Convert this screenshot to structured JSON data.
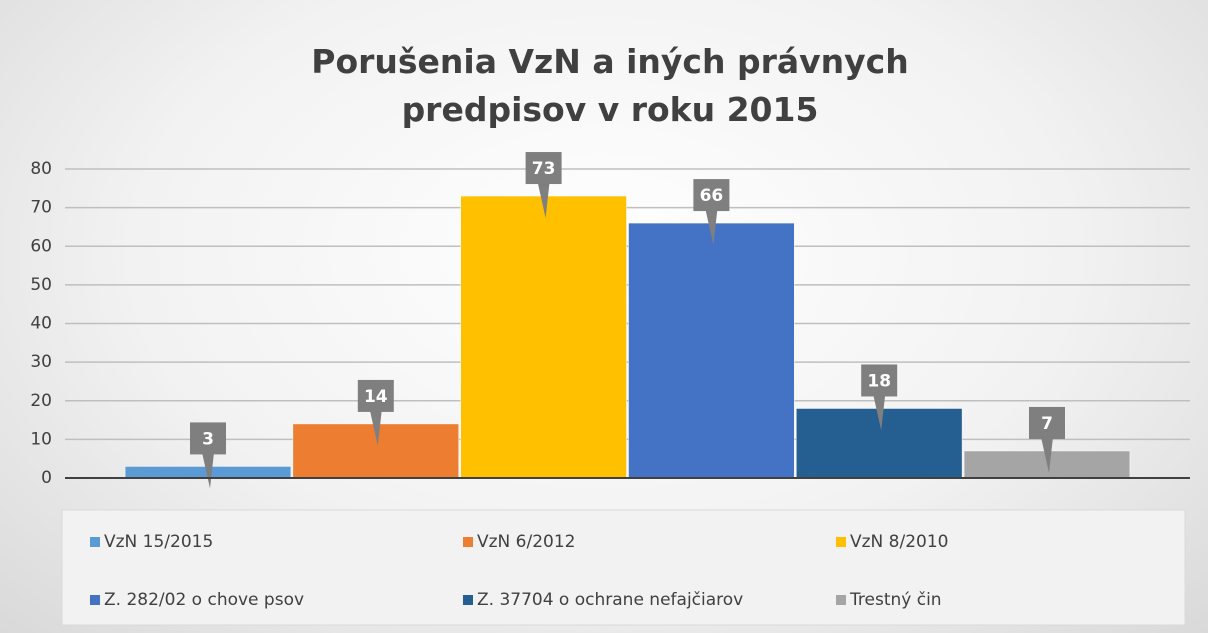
{
  "chart_data": {
    "type": "bar",
    "title": "Porušenia VzN  a iných právnych predpisov  v roku 2015",
    "series": [
      {
        "name": "VzN 15/2015",
        "color": "#5b9bd5",
        "values": [
          3
        ]
      },
      {
        "name": "VzN 6/2012",
        "color": "#ed7d31",
        "values": [
          14
        ]
      },
      {
        "name": "VzN 8/2010",
        "color": "#ffc000",
        "values": [
          73
        ]
      },
      {
        "name": "Z. 282/02 o chove psov",
        "color": "#4472c4",
        "values": [
          66
        ]
      },
      {
        "name": "Z. 37704 o ochrane nefajčiarov",
        "color": "#255e91",
        "values": [
          18
        ]
      },
      {
        "name": "Trestný čin",
        "color": "#a5a5a5",
        "values": [
          7
        ]
      }
    ],
    "ylim": [
      0,
      80
    ],
    "yticks": [
      0,
      10,
      20,
      30,
      40,
      50,
      60,
      70,
      80
    ],
    "grid": true,
    "legend": "bottom"
  }
}
